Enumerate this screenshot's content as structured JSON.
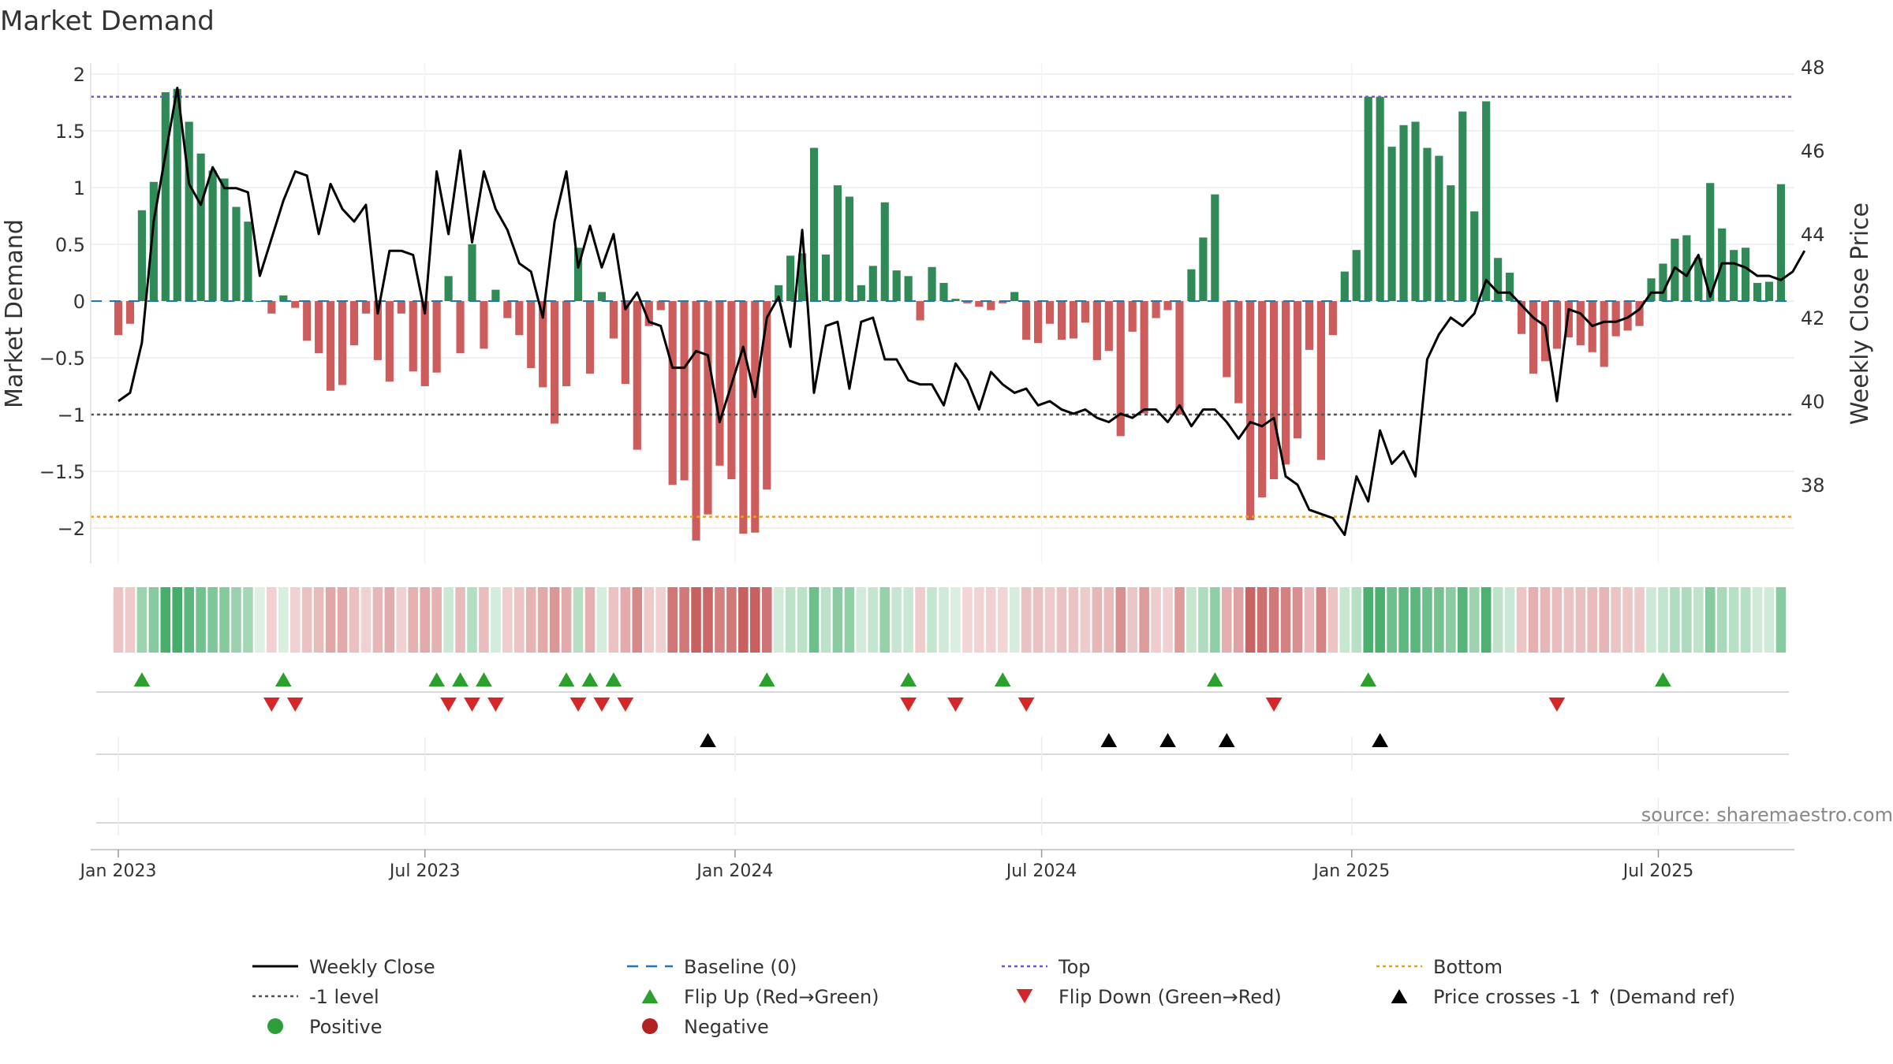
{
  "chart_data": {
    "type": "bar+line",
    "title": "Market Demand",
    "ylabel": "Market Demand",
    "y2label": "Weekly Close Price",
    "ylim": [
      -2.3,
      2.1
    ],
    "y2lim": [
      36.0,
      48.2
    ],
    "yticks": [
      2,
      1.5,
      1,
      0.5,
      0,
      -0.5,
      -1,
      -1.5,
      -2
    ],
    "ytick_labels": [
      "2",
      "1.5",
      "1",
      "0.5",
      "0",
      "−0.5",
      "−1",
      "−1.5",
      "−2"
    ],
    "y2ticks": [
      48,
      46,
      44,
      42,
      40,
      38
    ],
    "y2tick_labels": [
      "48",
      "46",
      "44",
      "42",
      "40",
      "38"
    ],
    "x_start_week_index": 0,
    "x_tick_labels": [
      "Jan 2023",
      "Jul 2023",
      "Jan 2024",
      "Jul 2024",
      "Jan 2025",
      "Jul 2025"
    ],
    "x_tick_week_positions": [
      0,
      26,
      52.3,
      78.3,
      104.6,
      130.6
    ],
    "levels": {
      "top": 1.8,
      "bottom": -1.9,
      "minus_one": -1,
      "baseline": 0
    },
    "demand": [
      -0.3,
      -0.2,
      0.8,
      1.05,
      1.84,
      1.87,
      1.58,
      1.3,
      1.15,
      1.08,
      0.83,
      0.7,
      0,
      -0.11,
      0.05,
      -0.06,
      -0.35,
      -0.46,
      -0.79,
      -0.74,
      -0.39,
      -0.11,
      -0.52,
      -0.71,
      -0.11,
      -0.62,
      -0.75,
      -0.63,
      0.22,
      -0.46,
      0.5,
      -0.42,
      0.1,
      -0.15,
      -0.3,
      -0.59,
      -0.76,
      -1.08,
      -0.75,
      0.47,
      -0.64,
      0.08,
      -0.33,
      -0.73,
      -1.31,
      -0.22,
      -0.08,
      -1.62,
      -1.58,
      -2.11,
      -1.88,
      -1.45,
      -1.57,
      -2.05,
      -2.04,
      -1.66,
      0.14,
      0.4,
      0.42,
      1.35,
      0.41,
      1.02,
      0.92,
      0.14,
      0.31,
      0.87,
      0.27,
      0.22,
      -0.17,
      0.3,
      0.16,
      0.02,
      -0.02,
      -0.05,
      -0.08,
      -0.02,
      0.08,
      -0.34,
      -0.37,
      -0.2,
      -0.34,
      -0.33,
      -0.19,
      -0.52,
      -0.44,
      -1.19,
      -0.27,
      -0.99,
      -0.15,
      -0.08,
      -1.0,
      0.28,
      0.56,
      0.94,
      -0.67,
      -0.9,
      -1.93,
      -1.73,
      -1.57,
      -1.44,
      -1.21,
      -0.43,
      -1.4,
      -0.3,
      0.26,
      0.45,
      1.8,
      1.8,
      1.36,
      1.55,
      1.58,
      1.35,
      1.28,
      1.02,
      1.67,
      0.79,
      1.76,
      0.38,
      0.25,
      -0.29,
      -0.64,
      -0.53,
      -0.42,
      -0.32,
      -0.39,
      -0.45,
      -0.58,
      -0.31,
      -0.26,
      -0.22,
      0.2,
      0.33,
      0.55,
      0.58,
      0.38,
      1.04,
      0.64,
      0.45,
      0.47,
      0.16,
      0.17,
      1.03
    ],
    "close": [
      40.0,
      40.2,
      41.4,
      44.3,
      45.9,
      47.5,
      45.2,
      44.7,
      45.6,
      45.1,
      45.1,
      45.0,
      43.0,
      43.9,
      44.8,
      45.5,
      45.4,
      44.0,
      45.2,
      44.6,
      44.3,
      44.7,
      42.1,
      43.6,
      43.6,
      43.5,
      42.1,
      45.5,
      44.0,
      46.0,
      43.8,
      45.5,
      44.6,
      44.1,
      43.3,
      43.1,
      42.0,
      44.3,
      45.5,
      43.2,
      44.2,
      43.2,
      44.0,
      42.2,
      42.6,
      41.9,
      41.8,
      40.8,
      40.8,
      41.2,
      41.1,
      39.5,
      40.4,
      41.3,
      40.1,
      42.0,
      42.5,
      41.3,
      44.1,
      40.2,
      41.8,
      41.9,
      40.3,
      41.9,
      42.0,
      41.0,
      41.0,
      40.5,
      40.4,
      40.4,
      39.9,
      40.9,
      40.5,
      39.8,
      40.7,
      40.4,
      40.2,
      40.3,
      39.9,
      40.0,
      39.8,
      39.7,
      39.8,
      39.6,
      39.5,
      39.7,
      39.6,
      39.8,
      39.8,
      39.5,
      39.9,
      39.4,
      39.8,
      39.8,
      39.5,
      39.1,
      39.5,
      39.4,
      39.6,
      38.2,
      38.0,
      37.4,
      37.3,
      37.2,
      36.8,
      38.2,
      37.6,
      39.3,
      38.5,
      38.8,
      38.2,
      41.0,
      41.6,
      42.0,
      41.8,
      42.1,
      42.9,
      42.6,
      42.6,
      42.3,
      42.0,
      41.8,
      40.0,
      42.2,
      42.1,
      41.8,
      41.9,
      41.9,
      42.0,
      42.2,
      42.6,
      42.6,
      43.2,
      43.0,
      43.5,
      42.5,
      43.3,
      43.3,
      43.2,
      43.0,
      43.0,
      42.9,
      43.1,
      43.6
    ],
    "flip_up_weeks": [
      2,
      14,
      27,
      29,
      31,
      38,
      40,
      42,
      55,
      67,
      75,
      93,
      106,
      131
    ],
    "flip_down_weeks": [
      13,
      15,
      28,
      30,
      32,
      39,
      41,
      43,
      67,
      71,
      77,
      98,
      122
    ],
    "price_cross_weeks": [
      50,
      84,
      89,
      94,
      107
    ],
    "source_label": "source: sharemaestro.com",
    "legend": [
      {
        "label": "Weekly Close",
        "kind": "line",
        "color": "#000000"
      },
      {
        "label": "Baseline (0)",
        "kind": "dash",
        "color": "#1f77b4"
      },
      {
        "label": "Top",
        "kind": "dot",
        "color": "#6a5acd"
      },
      {
        "label": "Bottom",
        "kind": "dot",
        "color": "#e8a317"
      },
      {
        "label": "-1 level",
        "kind": "dot",
        "color": "#555555"
      },
      {
        "label": "Flip Up (Red→Green)",
        "kind": "tri-up",
        "color": "#2ca02c"
      },
      {
        "label": "Flip Down (Green→Red)",
        "kind": "tri-down",
        "color": "#d62728"
      },
      {
        "label": "Price crosses -1 ↑ (Demand ref)",
        "kind": "tri-up",
        "color": "#000000"
      },
      {
        "label": "Positive",
        "kind": "circle",
        "color": "#2e9e3a"
      },
      {
        "label": "Negative",
        "kind": "circle",
        "color": "#b22222"
      }
    ],
    "colors": {
      "positive": "#2f8a57",
      "negative": "#cd5c5c",
      "close": "#000000"
    }
  }
}
